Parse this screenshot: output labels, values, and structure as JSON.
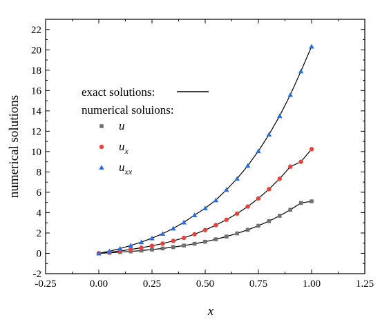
{
  "chart_data": {
    "type": "line",
    "title": "",
    "xlabel": "x",
    "ylabel": "numerical solutions",
    "xlim": [
      -0.25,
      1.25
    ],
    "ylim": [
      -2,
      23
    ],
    "x_ticks": [
      -0.25,
      0.0,
      0.25,
      0.5,
      0.75,
      1.0,
      1.25
    ],
    "x_tick_labels": [
      "-0.25",
      "0.00",
      "0.25",
      "0.50",
      "0.75",
      "1.00",
      "1.25"
    ],
    "y_ticks": [
      -2,
      0,
      2,
      4,
      6,
      8,
      10,
      12,
      14,
      16,
      18,
      20,
      22
    ],
    "y_tick_labels": [
      "-2",
      "0",
      "2",
      "4",
      "6",
      "8",
      "10",
      "12",
      "14",
      "16",
      "18",
      "20",
      "22"
    ],
    "grid": false,
    "legend_position": "center-left",
    "legend": {
      "exact_label": "exact solutions:",
      "numerical_label": "numerical soluions:",
      "entries": [
        {
          "base": "u",
          "sub": ""
        },
        {
          "base": "u",
          "sub": "x"
        },
        {
          "base": "u",
          "sub": "xx"
        }
      ]
    },
    "x": [
      0.0,
      0.05,
      0.1,
      0.15,
      0.2,
      0.25,
      0.3,
      0.35,
      0.4,
      0.45,
      0.5,
      0.55,
      0.6,
      0.65,
      0.7,
      0.75,
      0.8,
      0.85,
      0.9,
      0.95,
      1.0
    ],
    "series": [
      {
        "name": "u",
        "marker": "square",
        "color": "#707070",
        "values": [
          0.0,
          0.05,
          0.12,
          0.19,
          0.27,
          0.37,
          0.48,
          0.61,
          0.76,
          0.94,
          1.14,
          1.38,
          1.65,
          1.96,
          2.31,
          2.71,
          3.17,
          3.69,
          4.28,
          4.95,
          5.11
        ]
      },
      {
        "name": "u_x",
        "marker": "circle",
        "color": "#e8403a",
        "values": [
          0.0,
          0.1,
          0.23,
          0.38,
          0.55,
          0.74,
          0.96,
          1.22,
          1.52,
          1.88,
          2.29,
          2.77,
          3.3,
          3.91,
          4.6,
          5.4,
          6.31,
          7.33,
          8.52,
          9.0,
          10.24
        ]
      },
      {
        "name": "u_xx",
        "marker": "triangle",
        "color": "#2a6fdb",
        "values": [
          0.0,
          0.21,
          0.47,
          0.77,
          1.1,
          1.49,
          1.93,
          2.45,
          3.05,
          3.76,
          4.44,
          5.23,
          6.25,
          7.34,
          8.61,
          10.05,
          11.68,
          13.51,
          15.58,
          17.9,
          20.33
        ]
      }
    ],
    "colors": {
      "exact_line": "#000000",
      "axis": "#000000"
    }
  }
}
